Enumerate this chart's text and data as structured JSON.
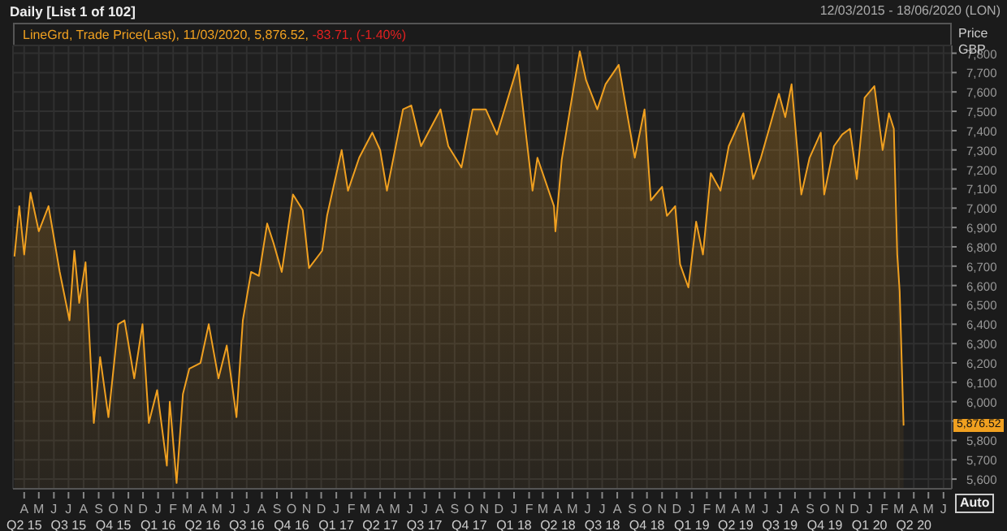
{
  "chart_data": {
    "type": "area",
    "title": "Daily [List 1 of 102]",
    "subtitle": "12/03/2015 - 18/06/2020 (LON)",
    "ylabel": "Price GBP",
    "legend": "top left",
    "grid": true,
    "line_style": "solid",
    "marker": "none",
    "annotations": [
      "-83.71, (-1.40%)",
      "5,876.52",
      "Auto"
    ],
    "xlim": [
      "2015-03-09",
      "2020-06-18"
    ],
    "ylim": [
      5550,
      7840
    ],
    "yticks": [
      {
        "value": 5600,
        "label": "5,600"
      },
      {
        "value": 5700,
        "label": "5,700"
      },
      {
        "value": 5800,
        "label": "5,800"
      },
      {
        "value": 5900,
        "label": null
      },
      {
        "value": 6000,
        "label": "6,000"
      },
      {
        "value": 6100,
        "label": "6,100"
      },
      {
        "value": 6200,
        "label": "6,200"
      },
      {
        "value": 6300,
        "label": "6,300"
      },
      {
        "value": 6400,
        "label": "6,400"
      },
      {
        "value": 6500,
        "label": "6,500"
      },
      {
        "value": 6600,
        "label": "6,600"
      },
      {
        "value": 6700,
        "label": "6,700"
      },
      {
        "value": 6800,
        "label": "6,800"
      },
      {
        "value": 6900,
        "label": "6,900"
      },
      {
        "value": 7000,
        "label": "7,000"
      },
      {
        "value": 7100,
        "label": "7,100"
      },
      {
        "value": 7200,
        "label": "7,200"
      },
      {
        "value": 7300,
        "label": "7,300"
      },
      {
        "value": 7400,
        "label": "7,400"
      },
      {
        "value": 7500,
        "label": "7,500"
      },
      {
        "value": 7600,
        "label": "7,600"
      },
      {
        "value": 7700,
        "label": "7,700"
      },
      {
        "value": 7800,
        "label": "7,800"
      }
    ],
    "xticks": [
      {
        "value": "2015-04-01",
        "label": "A\nQ2 15"
      },
      {
        "value": "2015-05-01",
        "label": "M"
      },
      {
        "value": "2015-06-01",
        "label": "J"
      },
      {
        "value": "2015-07-01",
        "label": "J\nQ3 15"
      },
      {
        "value": "2015-08-01",
        "label": "A"
      },
      {
        "value": "2015-09-01",
        "label": "S"
      },
      {
        "value": "2015-10-01",
        "label": "O\nQ4 15"
      },
      {
        "value": "2015-11-01",
        "label": "N"
      },
      {
        "value": "2015-12-01",
        "label": "D"
      },
      {
        "value": "2016-01-01",
        "label": "J\nQ1 16"
      },
      {
        "value": "2016-02-01",
        "label": "F"
      },
      {
        "value": "2016-03-01",
        "label": "M"
      },
      {
        "value": "2016-04-01",
        "label": "A\nQ2 16"
      },
      {
        "value": "2016-05-01",
        "label": "M"
      },
      {
        "value": "2016-06-01",
        "label": "J"
      },
      {
        "value": "2016-07-01",
        "label": "J\nQ3 16"
      },
      {
        "value": "2016-08-01",
        "label": "A"
      },
      {
        "value": "2016-09-01",
        "label": "S"
      },
      {
        "value": "2016-10-01",
        "label": "O\nQ4 16"
      },
      {
        "value": "2016-11-01",
        "label": "N"
      },
      {
        "value": "2016-12-01",
        "label": "D"
      },
      {
        "value": "2017-01-01",
        "label": "J\nQ1 17"
      },
      {
        "value": "2017-02-01",
        "label": "F"
      },
      {
        "value": "2017-03-01",
        "label": "M"
      },
      {
        "value": "2017-04-01",
        "label": "A\nQ2 17"
      },
      {
        "value": "2017-05-01",
        "label": "M"
      },
      {
        "value": "2017-06-01",
        "label": "J"
      },
      {
        "value": "2017-07-01",
        "label": "J\nQ3 17"
      },
      {
        "value": "2017-08-01",
        "label": "A"
      },
      {
        "value": "2017-09-01",
        "label": "S"
      },
      {
        "value": "2017-10-01",
        "label": "O\nQ4 17"
      },
      {
        "value": "2017-11-01",
        "label": "N"
      },
      {
        "value": "2017-12-01",
        "label": "D"
      },
      {
        "value": "2018-01-01",
        "label": "J\nQ1 18"
      },
      {
        "value": "2018-02-01",
        "label": "F"
      },
      {
        "value": "2018-03-01",
        "label": "M"
      },
      {
        "value": "2018-04-01",
        "label": "A\nQ2 18"
      },
      {
        "value": "2018-05-01",
        "label": "M"
      },
      {
        "value": "2018-06-01",
        "label": "J"
      },
      {
        "value": "2018-07-01",
        "label": "J\nQ3 18"
      },
      {
        "value": "2018-08-01",
        "label": "A"
      },
      {
        "value": "2018-09-01",
        "label": "S"
      },
      {
        "value": "2018-10-01",
        "label": "O\nQ4 18"
      },
      {
        "value": "2018-11-01",
        "label": "N"
      },
      {
        "value": "2018-12-01",
        "label": "D"
      },
      {
        "value": "2019-01-01",
        "label": "J\nQ1 19"
      },
      {
        "value": "2019-02-01",
        "label": "F"
      },
      {
        "value": "2019-03-01",
        "label": "M"
      },
      {
        "value": "2019-04-01",
        "label": "A\nQ2 19"
      },
      {
        "value": "2019-05-01",
        "label": "M"
      },
      {
        "value": "2019-06-01",
        "label": "J"
      },
      {
        "value": "2019-07-01",
        "label": "J\nQ3 19"
      },
      {
        "value": "2019-08-01",
        "label": "A"
      },
      {
        "value": "2019-09-01",
        "label": "S"
      },
      {
        "value": "2019-10-01",
        "label": "O\nQ4 19"
      },
      {
        "value": "2019-11-01",
        "label": "N"
      },
      {
        "value": "2019-12-01",
        "label": "D"
      },
      {
        "value": "2020-01-01",
        "label": "J\nQ1 20"
      },
      {
        "value": "2020-02-01",
        "label": "F"
      },
      {
        "value": "2020-03-01",
        "label": "M"
      },
      {
        "value": "2020-04-01",
        "label": "A\nQ2 20"
      },
      {
        "value": "2020-05-01",
        "label": "M"
      },
      {
        "value": "2020-06-01",
        "label": "J"
      }
    ],
    "series": [
      {
        "name": "LineGrd, Trade Price(Last), 11/03/2020, 5,876.52,",
        "color": "#f0a020",
        "x": [
          "2015-03-12",
          "2015-03-22",
          "2015-04-01",
          "2015-04-14",
          "2015-05-01",
          "2015-05-21",
          "2015-06-13",
          "2015-07-03",
          "2015-07-13",
          "2015-07-23",
          "2015-08-05",
          "2015-08-22",
          "2015-09-04",
          "2015-09-21",
          "2015-10-11",
          "2015-10-24",
          "2015-11-13",
          "2015-11-30",
          "2015-12-13",
          "2015-12-30",
          "2016-01-19",
          "2016-01-25",
          "2016-02-08",
          "2016-02-21",
          "2016-03-05",
          "2016-03-28",
          "2016-04-14",
          "2016-05-04",
          "2016-05-21",
          "2016-06-10",
          "2016-06-23",
          "2016-07-10",
          "2016-07-26",
          "2016-08-12",
          "2016-08-25",
          "2016-09-11",
          "2016-10-04",
          "2016-10-24",
          "2016-11-06",
          "2016-12-03",
          "2016-12-13",
          "2017-01-12",
          "2017-01-25",
          "2017-02-17",
          "2017-03-16",
          "2017-04-01",
          "2017-04-15",
          "2017-05-18",
          "2017-06-04",
          "2017-06-24",
          "2017-08-03",
          "2017-08-19",
          "2017-09-15",
          "2017-10-08",
          "2017-11-04",
          "2017-11-27",
          "2018-01-09",
          "2018-02-08",
          "2018-02-18",
          "2018-03-24",
          "2018-03-27",
          "2018-04-09",
          "2018-04-26",
          "2018-05-16",
          "2018-05-29",
          "2018-06-21",
          "2018-07-08",
          "2018-08-04",
          "2018-08-17",
          "2018-09-06",
          "2018-09-26",
          "2018-10-09",
          "2018-11-01",
          "2018-11-11",
          "2018-11-28",
          "2018-12-08",
          "2018-12-25",
          "2019-01-10",
          "2019-01-24",
          "2019-02-09",
          "2019-03-01",
          "2019-03-18",
          "2019-04-17",
          "2019-05-07",
          "2019-05-23",
          "2019-06-09",
          "2019-06-29",
          "2019-07-12",
          "2019-07-25",
          "2019-08-11",
          "2019-08-14",
          "2019-08-31",
          "2019-09-23",
          "2019-09-30",
          "2019-10-20",
          "2019-11-06",
          "2019-11-22",
          "2019-12-06",
          "2019-12-22",
          "2020-01-11",
          "2020-01-28",
          "2020-02-10",
          "2020-02-20",
          "2020-02-27",
          "2020-03-03",
          "2020-03-11"
        ],
        "values": [
          6750,
          7010,
          6760,
          7080,
          6880,
          7010,
          6670,
          6420,
          6780,
          6510,
          6720,
          5890,
          6230,
          5920,
          6400,
          6420,
          6120,
          6400,
          5890,
          6060,
          5670,
          6000,
          5580,
          6040,
          6170,
          6200,
          6400,
          6120,
          6290,
          5920,
          6420,
          6670,
          6650,
          6920,
          6820,
          6670,
          7070,
          6990,
          6690,
          6780,
          6960,
          7300,
          7090,
          7260,
          7390,
          7300,
          7090,
          7510,
          7530,
          7320,
          7510,
          7320,
          7210,
          7510,
          7510,
          7380,
          7740,
          7090,
          7260,
          7010,
          6880,
          7250,
          7510,
          7810,
          7660,
          7510,
          7640,
          7740,
          7550,
          7260,
          7510,
          7040,
          7110,
          6960,
          7010,
          6710,
          6590,
          6930,
          6760,
          7180,
          7090,
          7320,
          7490,
          7150,
          7260,
          7410,
          7590,
          7470,
          7640,
          7150,
          7070,
          7260,
          7390,
          7070,
          7320,
          7380,
          7410,
          7150,
          7570,
          7630,
          7300,
          7490,
          7410,
          6760,
          6570,
          5876.52
        ]
      }
    ]
  }
}
